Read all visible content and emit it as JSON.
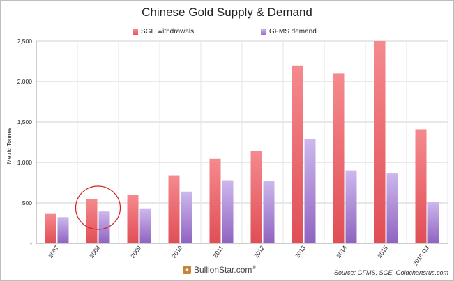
{
  "chart_data": {
    "type": "bar",
    "title": "Chinese Gold Supply & Demand",
    "ylabel": "Metric Tonnes",
    "xlabel": "",
    "ylim": [
      0,
      2500
    ],
    "yticks": [
      "-",
      "500",
      "1,000",
      "1,500",
      "2,000",
      "2,500"
    ],
    "categories": [
      "2007",
      "2008",
      "2009",
      "2010",
      "2011",
      "2012",
      "2013",
      "2014",
      "2015",
      "2016 Q3"
    ],
    "series": [
      {
        "name": "SGE withdrawals",
        "color": "#e8535a",
        "values": [
          365,
          545,
          600,
          840,
          1045,
          1140,
          2200,
          2100,
          2500,
          1410
        ]
      },
      {
        "name": "GFMS demand",
        "color": "#9a70c8",
        "values": [
          325,
          395,
          425,
          640,
          780,
          775,
          1285,
          900,
          870,
          515
        ]
      }
    ],
    "grid": true,
    "legend": "top",
    "annotation": {
      "type": "circle",
      "category": "2008",
      "color": "#d62020"
    }
  },
  "footer": {
    "logo_text": "BullionStar.com",
    "logo_reg": "®",
    "source": "Source: GFMS, SGE, Goldchartsrus.com"
  }
}
